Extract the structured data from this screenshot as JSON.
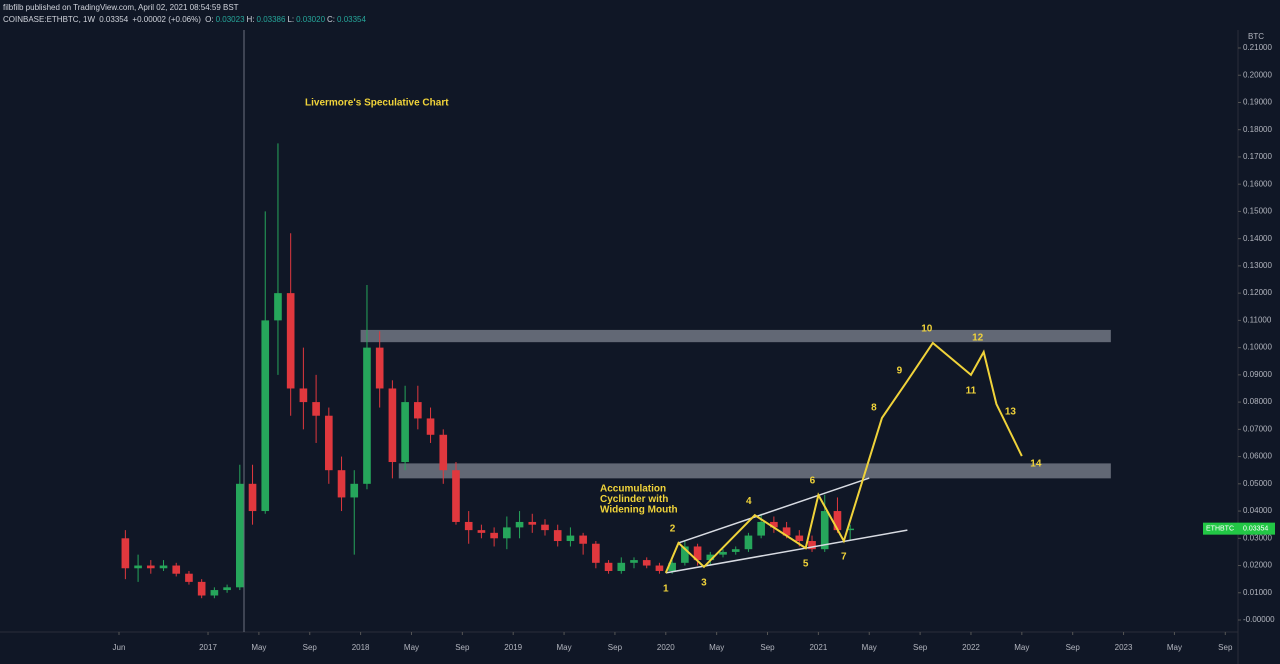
{
  "header": {
    "publisher": "filbfilb published on TradingView.com, April 02, 2021 08:54:59 BST",
    "symbol": "COINBASE:ETHBTC, 1W",
    "last": "0.03354",
    "change": "+0.00002 (+0.06%)",
    "ohlc": [
      {
        "label": "O:",
        "value": "0.03023"
      },
      {
        "label": "H:",
        "value": "0.03386"
      },
      {
        "label": "L:",
        "value": "0.03020"
      },
      {
        "label": "C:",
        "value": "0.03354"
      }
    ]
  },
  "chart_data": {
    "type": "candlestick",
    "title": "Livermore's Speculative Chart",
    "y_axis_label": "BTC",
    "up_color": "#26a65b",
    "down_color": "#e0383e",
    "x": [
      "2016-06",
      "2016-07",
      "2016-08",
      "2016-09",
      "2016-10",
      "2016-11",
      "2016-12",
      "2017-01",
      "2017-02",
      "2017-03",
      "2017-04",
      "2017-05",
      "2017-06",
      "2017-07",
      "2017-08",
      "2017-09",
      "2017-10",
      "2017-11",
      "2017-12",
      "2018-01",
      "2018-02",
      "2018-03",
      "2018-04",
      "2018-05",
      "2018-06",
      "2018-07",
      "2018-08",
      "2018-09",
      "2018-10",
      "2018-11",
      "2018-12",
      "2019-01",
      "2019-02",
      "2019-03",
      "2019-04",
      "2019-05",
      "2019-06",
      "2019-07",
      "2019-08",
      "2019-09",
      "2019-10",
      "2019-11",
      "2019-12",
      "2020-01",
      "2020-02",
      "2020-03",
      "2020-04",
      "2020-05",
      "2020-06",
      "2020-07",
      "2020-08",
      "2020-09",
      "2020-10",
      "2020-11",
      "2020-12",
      "2021-01",
      "2021-02",
      "2021-03"
    ],
    "open": [
      0.03,
      0.019,
      0.02,
      0.019,
      0.02,
      0.017,
      0.014,
      0.009,
      0.011,
      0.012,
      0.05,
      0.04,
      0.11,
      0.12,
      0.085,
      0.08,
      0.075,
      0.055,
      0.045,
      0.05,
      0.1,
      0.085,
      0.058,
      0.08,
      0.074,
      0.068,
      0.055,
      0.036,
      0.033,
      0.032,
      0.03,
      0.034,
      0.036,
      0.035,
      0.033,
      0.029,
      0.031,
      0.028,
      0.021,
      0.018,
      0.021,
      0.022,
      0.02,
      0.018,
      0.021,
      0.027,
      0.022,
      0.024,
      0.025,
      0.026,
      0.031,
      0.036,
      0.034,
      0.031,
      0.029,
      0.026,
      0.04,
      0.033
    ],
    "high": [
      0.033,
      0.024,
      0.022,
      0.022,
      0.021,
      0.018,
      0.015,
      0.012,
      0.013,
      0.057,
      0.057,
      0.15,
      0.175,
      0.142,
      0.1,
      0.09,
      0.078,
      0.06,
      0.055,
      0.123,
      0.106,
      0.088,
      0.086,
      0.086,
      0.078,
      0.07,
      0.058,
      0.04,
      0.035,
      0.034,
      0.038,
      0.04,
      0.039,
      0.037,
      0.035,
      0.034,
      0.032,
      0.029,
      0.022,
      0.023,
      0.023,
      0.023,
      0.021,
      0.022,
      0.029,
      0.028,
      0.025,
      0.026,
      0.027,
      0.032,
      0.039,
      0.038,
      0.036,
      0.033,
      0.031,
      0.046,
      0.045,
      0.035
    ],
    "low": [
      0.015,
      0.014,
      0.017,
      0.018,
      0.016,
      0.013,
      0.008,
      0.008,
      0.01,
      0.011,
      0.035,
      0.039,
      0.09,
      0.075,
      0.07,
      0.065,
      0.05,
      0.04,
      0.024,
      0.048,
      0.078,
      0.052,
      0.055,
      0.07,
      0.065,
      0.05,
      0.035,
      0.028,
      0.03,
      0.027,
      0.026,
      0.03,
      0.032,
      0.031,
      0.027,
      0.027,
      0.024,
      0.019,
      0.017,
      0.017,
      0.019,
      0.019,
      0.017,
      0.017,
      0.02,
      0.02,
      0.02,
      0.023,
      0.024,
      0.025,
      0.03,
      0.032,
      0.03,
      0.027,
      0.025,
      0.025,
      0.032,
      0.029
    ],
    "close": [
      0.019,
      0.02,
      0.019,
      0.02,
      0.017,
      0.014,
      0.009,
      0.011,
      0.012,
      0.05,
      0.04,
      0.11,
      0.12,
      0.085,
      0.08,
      0.075,
      0.055,
      0.045,
      0.05,
      0.1,
      0.085,
      0.058,
      0.08,
      0.074,
      0.068,
      0.055,
      0.036,
      0.033,
      0.032,
      0.03,
      0.034,
      0.036,
      0.035,
      0.033,
      0.029,
      0.031,
      0.028,
      0.021,
      0.018,
      0.021,
      0.022,
      0.02,
      0.018,
      0.021,
      0.027,
      0.022,
      0.024,
      0.025,
      0.026,
      0.031,
      0.036,
      0.034,
      0.031,
      0.029,
      0.026,
      0.04,
      0.033,
      0.03354
    ],
    "xlim": [
      "2015-11",
      "2023-10"
    ],
    "xticks": [
      {
        "value": "2016-06",
        "label": "Jun"
      },
      {
        "value": "2017-01",
        "label": "2017"
      },
      {
        "value": "2017-05",
        "label": "May"
      },
      {
        "value": "2017-09",
        "label": "Sep"
      },
      {
        "value": "2018-01",
        "label": "2018"
      },
      {
        "value": "2018-05",
        "label": "May"
      },
      {
        "value": "2018-09",
        "label": "Sep"
      },
      {
        "value": "2019-01",
        "label": "2019"
      },
      {
        "value": "2019-05",
        "label": "May"
      },
      {
        "value": "2019-09",
        "label": "Sep"
      },
      {
        "value": "2020-01",
        "label": "2020"
      },
      {
        "value": "2020-05",
        "label": "May"
      },
      {
        "value": "2020-09",
        "label": "Sep"
      },
      {
        "value": "2021-01",
        "label": "2021"
      },
      {
        "value": "2021-05",
        "label": "May"
      },
      {
        "value": "2021-09",
        "label": "Sep"
      },
      {
        "value": "2022-01",
        "label": "2022"
      },
      {
        "value": "2022-05",
        "label": "May"
      },
      {
        "value": "2022-09",
        "label": "Sep"
      },
      {
        "value": "2023-01",
        "label": "2023"
      },
      {
        "value": "2023-05",
        "label": "May"
      },
      {
        "value": "2023-09",
        "label": "Sep"
      }
    ],
    "ylim": [
      -0.0044,
      0.2166
    ],
    "yticks": [
      {
        "value": 0,
        "label": "-0.00000"
      },
      {
        "value": 0.01,
        "label": "0.01000"
      },
      {
        "value": 0.02,
        "label": "0.02000"
      },
      {
        "value": 0.03,
        "label": "0.03000"
      },
      {
        "value": 0.04,
        "label": "0.04000"
      },
      {
        "value": 0.05,
        "label": "0.05000"
      },
      {
        "value": 0.06,
        "label": "0.06000"
      },
      {
        "value": 0.07,
        "label": "0.07000"
      },
      {
        "value": 0.08,
        "label": "0.08000"
      },
      {
        "value": 0.09,
        "label": "0.09000"
      },
      {
        "value": 0.1,
        "label": "0.10000"
      },
      {
        "value": 0.11,
        "label": "0.11000"
      },
      {
        "value": 0.12,
        "label": "0.12000"
      },
      {
        "value": 0.13,
        "label": "0.13000"
      },
      {
        "value": 0.14,
        "label": "0.14000"
      },
      {
        "value": 0.15,
        "label": "0.15000"
      },
      {
        "value": 0.16,
        "label": "0.16000"
      },
      {
        "value": 0.17,
        "label": "0.17000"
      },
      {
        "value": 0.18,
        "label": "0.18000"
      },
      {
        "value": 0.19,
        "label": "0.19000"
      },
      {
        "value": 0.2,
        "label": "0.20000"
      },
      {
        "value": 0.21,
        "label": "0.21000"
      }
    ],
    "price_tag": {
      "symbol": "ETHBTC",
      "value": 0.03354,
      "label": "0.03354",
      "color": "#22c745"
    },
    "zones": [
      {
        "start": "2018-01",
        "end": "2022-12",
        "low": 0.102,
        "high": 0.1065
      },
      {
        "start": "2018-04",
        "end": "2022-12",
        "low": 0.052,
        "high": 0.0575
      }
    ],
    "trend_lines": [
      {
        "x": [
          "2020-02",
          "2021-05"
        ],
        "y": [
          0.0283,
          0.0521
        ]
      },
      {
        "x": [
          "2020-01",
          "2021-08"
        ],
        "y": [
          0.0173,
          0.033
        ]
      }
    ],
    "projection": {
      "color": "#f0d33a",
      "labels": [
        "1",
        "2",
        "3",
        "4",
        "5",
        "6",
        "7",
        "8",
        "9",
        "10",
        "11",
        "12",
        "13",
        "14"
      ],
      "label_pos": [
        "below",
        "above",
        "below",
        "above",
        "below",
        "above",
        "below",
        "left",
        "left",
        "above",
        "below",
        "above",
        "right",
        "right"
      ],
      "x": [
        "2020-01",
        "2020-02",
        "2020-04",
        "2020-08",
        "2020-12",
        "2021-01",
        "2021-03",
        "2021-06",
        "2021-08",
        "2021-10",
        "2022-01",
        "2022-02",
        "2022-03",
        "2022-05"
      ],
      "y": [
        0.0173,
        0.0283,
        0.0195,
        0.0385,
        0.0264,
        0.0459,
        0.029,
        0.0742,
        0.0878,
        0.1017,
        0.09,
        0.0984,
        0.0793,
        0.0602
      ]
    },
    "annotation": [
      "Accumulation",
      "Cyclinder with",
      "Widening Mouth"
    ]
  }
}
